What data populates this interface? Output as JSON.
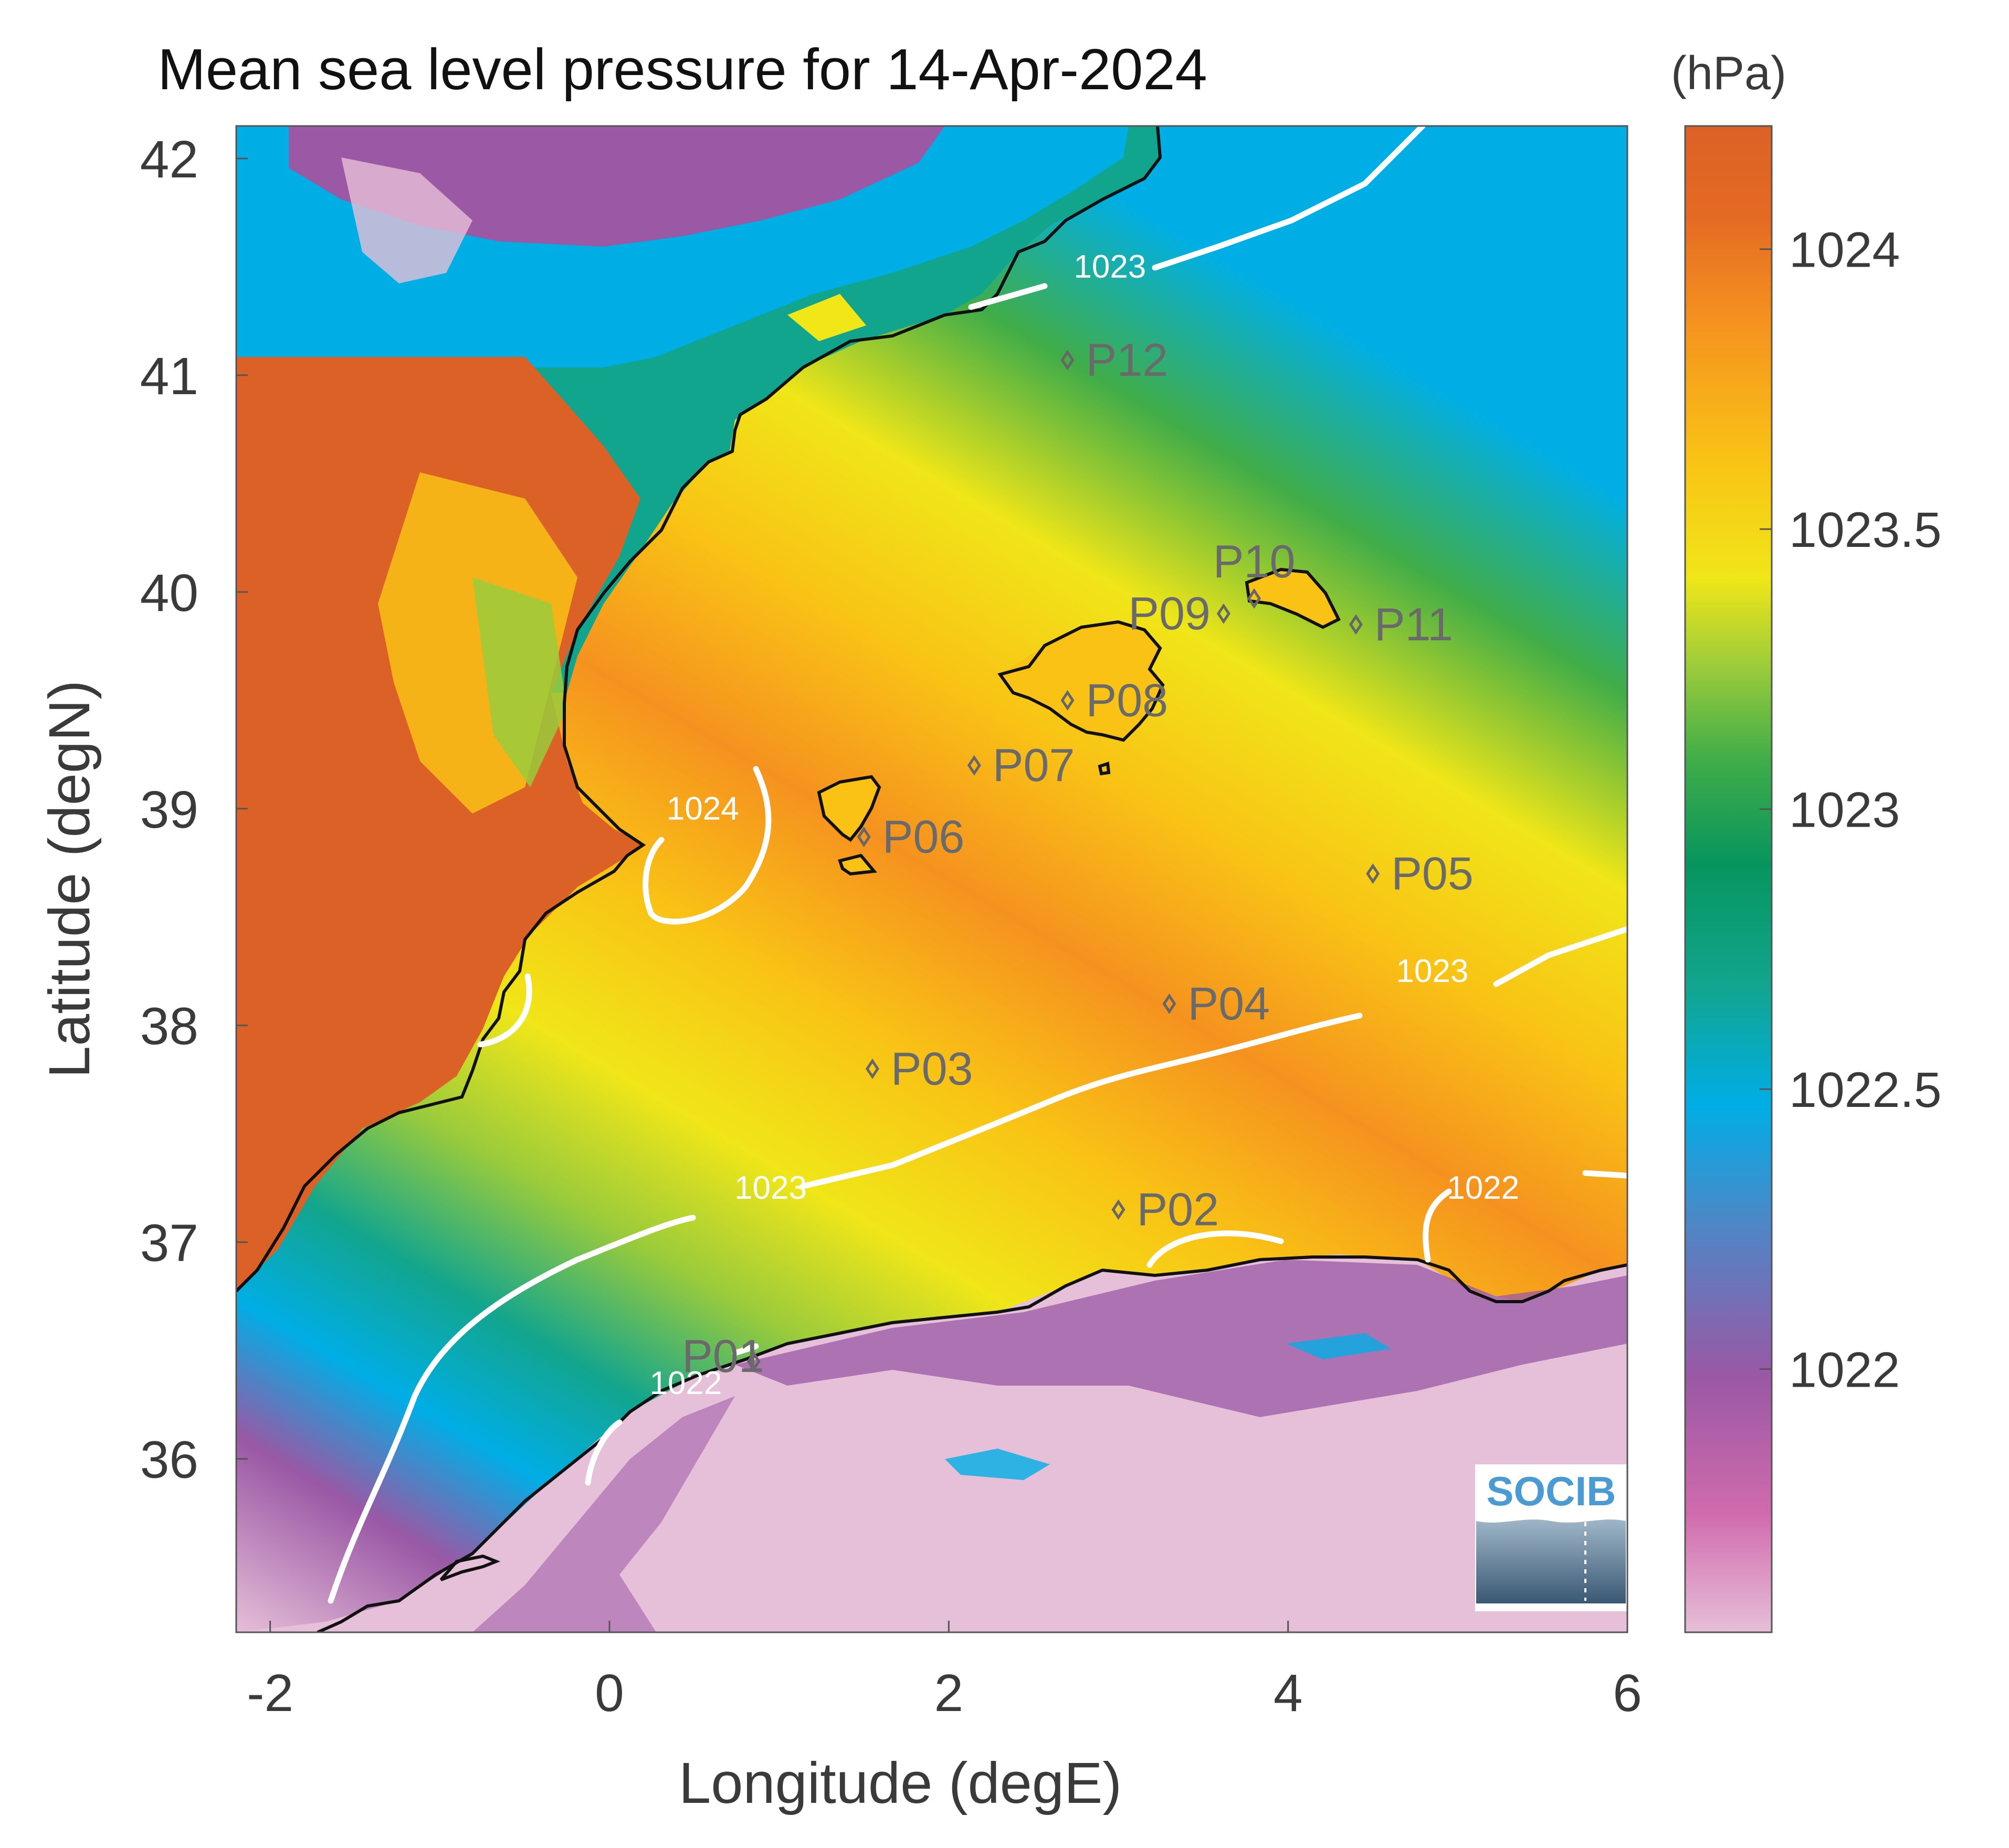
{
  "title": "Mean sea level pressure for 14-Apr-2024",
  "colorbar": {
    "unit": "(hPa)",
    "ticks": [
      "1024",
      "1023.5",
      "1023",
      "1022.5",
      "1022"
    ],
    "range": [
      1021.53,
      1024.22
    ],
    "colors": [
      "#e6bfd8",
      "#d06aac",
      "#9a58a5",
      "#4f86c6",
      "#00aee6",
      "#12a58e",
      "#07955e",
      "#41ad48",
      "#9acb3b",
      "#f0e618",
      "#f9c215",
      "#f5921f",
      "#e46a23",
      "#dc6127"
    ]
  },
  "axes": {
    "xlabel": "Longitude (degE)",
    "ylabel": "Latitude (degN)",
    "xticks": [
      "-2",
      "0",
      "2",
      "4",
      "6"
    ],
    "yticks": [
      "42",
      "41",
      "40",
      "39",
      "38",
      "37",
      "36"
    ],
    "xlim": [
      -2.2,
      6.0
    ],
    "ylim": [
      35.2,
      42.15
    ]
  },
  "contour_labels": [
    {
      "text": "1023",
      "lon": 2.95,
      "lat": 41.45
    },
    {
      "text": "1024",
      "lon": 0.55,
      "lat": 38.95
    },
    {
      "text": "1023",
      "lon": 4.85,
      "lat": 38.2
    },
    {
      "text": "1023",
      "lon": 0.95,
      "lat": 37.2
    },
    {
      "text": "1022",
      "lon": 5.15,
      "lat": 37.2
    },
    {
      "text": "1022",
      "lon": 0.45,
      "lat": 36.3
    }
  ],
  "stations": [
    {
      "id": "P01",
      "lon": 0.85,
      "lat": 36.45
    },
    {
      "id": "P02",
      "lon": 3.0,
      "lat": 37.15
    },
    {
      "id": "P03",
      "lon": 1.55,
      "lat": 37.8
    },
    {
      "id": "P04",
      "lon": 3.3,
      "lat": 38.1
    },
    {
      "id": "P05",
      "lon": 4.5,
      "lat": 38.7
    },
    {
      "id": "P06",
      "lon": 1.5,
      "lat": 38.87
    },
    {
      "id": "P07",
      "lon": 2.15,
      "lat": 39.2
    },
    {
      "id": "P08",
      "lon": 2.7,
      "lat": 39.5
    },
    {
      "id": "P09",
      "lon": 3.62,
      "lat": 39.9
    },
    {
      "id": "P10",
      "lon": 3.8,
      "lat": 39.97
    },
    {
      "id": "P11",
      "lon": 4.4,
      "lat": 39.85
    },
    {
      "id": "P12",
      "lon": 2.7,
      "lat": 41.07
    }
  ],
  "logo": {
    "text": "SOCIB"
  }
}
